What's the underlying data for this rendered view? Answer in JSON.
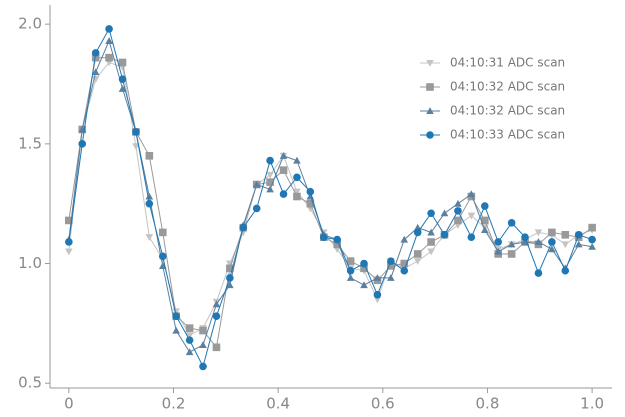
{
  "chart_data": {
    "type": "line",
    "x": [
      0,
      0.0256,
      0.0513,
      0.0769,
      0.1026,
      0.1282,
      0.1538,
      0.1795,
      0.2051,
      0.2308,
      0.2564,
      0.2821,
      0.3077,
      0.3333,
      0.359,
      0.3846,
      0.4103,
      0.4359,
      0.4615,
      0.4872,
      0.5128,
      0.5385,
      0.5641,
      0.5897,
      0.6154,
      0.641,
      0.6667,
      0.6923,
      0.7179,
      0.7436,
      0.7692,
      0.7949,
      0.8205,
      0.8462,
      0.8718,
      0.8974,
      0.9231,
      0.9487,
      0.9744,
      1
    ],
    "series": [
      {
        "name": "04:10:31 ADC scan",
        "color": "#c4c4c4",
        "marker": "v",
        "values": [
          1.05,
          1.56,
          1.77,
          1.84,
          1.82,
          1.49,
          1.11,
          1.02,
          0.8,
          0.7,
          0.73,
          0.84,
          1.0,
          1.13,
          1.33,
          1.37,
          1.45,
          1.3,
          1.23,
          1.13,
          1.06,
          0.98,
          0.97,
          0.85,
          1.01,
          0.98,
          1.01,
          1.05,
          1.12,
          1.16,
          1.2,
          1.15,
          1.06,
          1.08,
          1.1,
          1.13,
          1.12,
          1.08,
          1.12,
          1.14
        ]
      },
      {
        "name": "04:10:32 ADC scan",
        "color": "#999999",
        "marker": "s",
        "values": [
          1.18,
          1.56,
          1.86,
          1.86,
          1.84,
          1.55,
          1.45,
          1.13,
          0.78,
          0.73,
          0.72,
          0.65,
          0.98,
          1.15,
          1.33,
          1.34,
          1.39,
          1.28,
          1.25,
          1.11,
          1.08,
          1.01,
          0.98,
          0.93,
          0.99,
          1.0,
          1.04,
          1.09,
          1.12,
          1.18,
          1.28,
          1.18,
          1.04,
          1.04,
          1.09,
          1.08,
          1.13,
          1.12,
          1.11,
          1.15
        ]
      },
      {
        "name": "04:10:32 ADC scan",
        "color": "#5b7f9e",
        "marker": "^",
        "values": [
          1.1,
          1.56,
          1.8,
          1.93,
          1.73,
          1.55,
          1.28,
          0.99,
          0.72,
          0.63,
          0.66,
          0.83,
          0.91,
          1.16,
          1.33,
          1.31,
          1.45,
          1.43,
          1.28,
          1.12,
          1.1,
          0.94,
          0.91,
          0.94,
          0.94,
          1.1,
          1.15,
          1.13,
          1.21,
          1.25,
          1.29,
          1.14,
          1.05,
          1.08,
          1.09,
          1.09,
          1.06,
          0.98,
          1.08,
          1.07
        ]
      },
      {
        "name": "04:10:33 ADC scan",
        "color": "#1f77b4",
        "marker": "o",
        "values": [
          1.09,
          1.5,
          1.88,
          1.98,
          1.77,
          1.55,
          1.25,
          1.03,
          0.78,
          0.68,
          0.57,
          0.78,
          0.94,
          1.15,
          1.23,
          1.43,
          1.29,
          1.36,
          1.3,
          1.11,
          1.1,
          0.97,
          1.0,
          0.87,
          1.01,
          0.97,
          1.13,
          1.21,
          1.12,
          1.22,
          1.11,
          1.24,
          1.09,
          1.17,
          1.11,
          0.96,
          1.09,
          0.97,
          1.12,
          1.1
        ]
      }
    ],
    "xlim": [
      -0.036,
      1.038
    ],
    "ylim": [
      0.48,
      2.08
    ],
    "xticks": [
      0,
      0.2,
      0.4,
      0.6,
      0.8,
      {
        "value": 1,
        "label": "1.0"
      }
    ],
    "yticks": [
      0.5,
      {
        "value": 1,
        "label": "1.0"
      },
      1.5,
      {
        "value": 2,
        "label": "2.0"
      }
    ],
    "legend": "upper right"
  }
}
